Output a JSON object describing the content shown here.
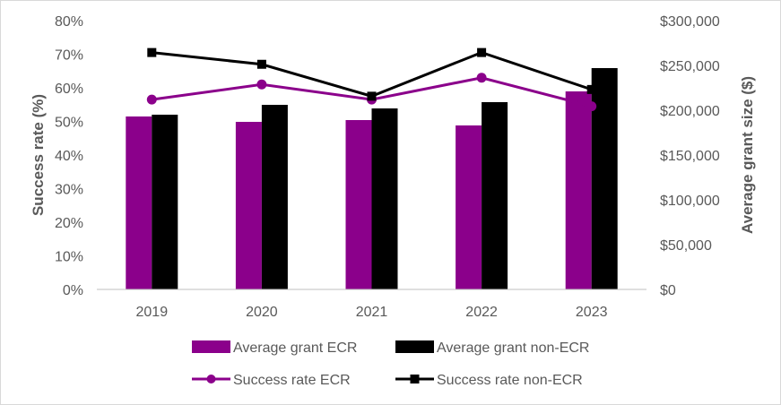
{
  "chart_data": {
    "type": "bar",
    "categories": [
      "2019",
      "2020",
      "2021",
      "2022",
      "2023"
    ],
    "series": [
      {
        "name": "Average grant ECR",
        "kind": "bar",
        "axis": "right",
        "color": "#8b008b",
        "values": [
          193000,
          187000,
          189000,
          183000,
          221000
        ]
      },
      {
        "name": "Average grant non-ECR",
        "kind": "bar",
        "axis": "right",
        "color": "#000000",
        "values": [
          195000,
          206000,
          202000,
          209000,
          247000
        ]
      },
      {
        "name": "Success rate ECR",
        "kind": "line",
        "marker": "circle",
        "axis": "left",
        "color": "#8b008b",
        "values": [
          0.565,
          0.61,
          0.565,
          0.63,
          0.545
        ]
      },
      {
        "name": "Success rate non-ECR",
        "kind": "line",
        "marker": "square",
        "axis": "left",
        "color": "#000000",
        "values": [
          0.705,
          0.67,
          0.575,
          0.705,
          0.595
        ]
      }
    ],
    "y_left": {
      "label": "Success rate (%)",
      "ylim": [
        0,
        0.8
      ],
      "ticks": [
        "0%",
        "10%",
        "20%",
        "30%",
        "40%",
        "50%",
        "60%",
        "70%",
        "80%"
      ]
    },
    "y_right": {
      "label": "Average grant size ($)",
      "ylim": [
        0,
        300000
      ],
      "ticks": [
        "$0",
        "$50,000",
        "$100,000",
        "$150,000",
        "$200,000",
        "$250,000",
        "$300,000"
      ]
    },
    "grid": false,
    "legend_position": "bottom"
  }
}
